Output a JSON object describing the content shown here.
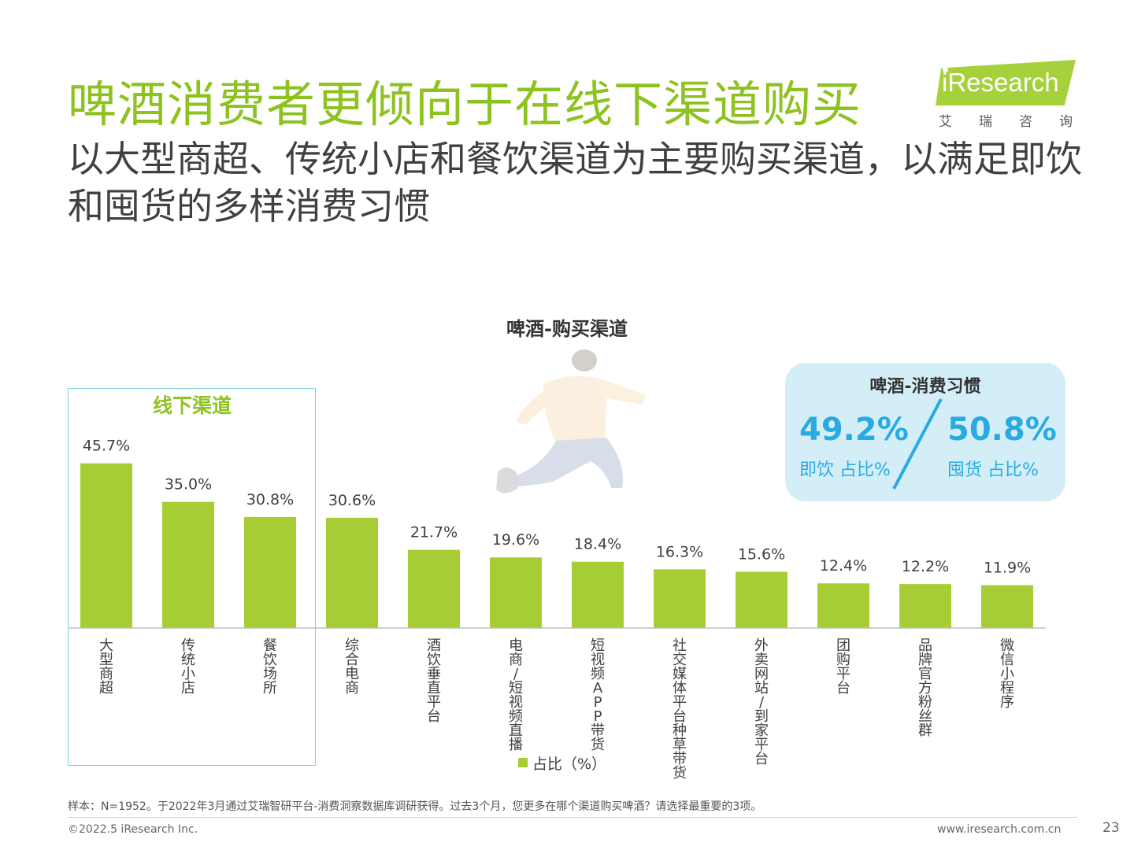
{
  "header": {
    "title": "啤酒消费者更倾向于在线下渠道购买",
    "subtitle": "以大型商超、传统小店和餐饮渠道为主要购买渠道，以满足即饮和囤货的多样消费习惯"
  },
  "logo": {
    "text": "iResearch",
    "cn": "艾瑞咨询"
  },
  "offline_label": "线下渠道",
  "habit": {
    "title": "啤酒-消费习惯",
    "left_value": "49.2%",
    "left_label": "即饮 占比%",
    "right_value": "50.8%",
    "right_label": "囤货 占比%"
  },
  "chart_data": {
    "type": "bar",
    "title": "啤酒-购买渠道",
    "categories": [
      "大型商超",
      "传统小店",
      "餐饮场所",
      "综合电商",
      "酒饮垂直平台",
      "电商/短视频直播",
      "短视频APP带货",
      "社交媒体平台种草带货",
      "外卖网站/到家平台",
      "团购平台",
      "品牌官方粉丝群",
      "微信小程序"
    ],
    "series": [
      {
        "name": "占比（%）",
        "values": [
          45.7,
          35.0,
          30.8,
          30.6,
          21.7,
          19.6,
          18.4,
          16.3,
          15.6,
          12.4,
          12.2,
          11.9
        ]
      }
    ],
    "value_labels": [
      "45.7%",
      "35.0%",
      "30.8%",
      "30.6%",
      "21.7%",
      "19.6%",
      "18.4%",
      "16.3%",
      "15.6%",
      "12.4%",
      "12.2%",
      "11.9%"
    ],
    "legend": "bottom",
    "legend_label": "占比（%）",
    "grid": false,
    "bar_color": "#a7cd35"
  },
  "footer": {
    "note": "样本：N=1952。于2022年3月通过艾瑞智研平台-消费洞察数据库调研获得。过去3个月，您更多在哪个渠道购买啤酒？请选择最重要的3项。",
    "copyright": "©2022.5 iResearch Inc.",
    "website": "www.iresearch.com.cn",
    "page": "23"
  }
}
